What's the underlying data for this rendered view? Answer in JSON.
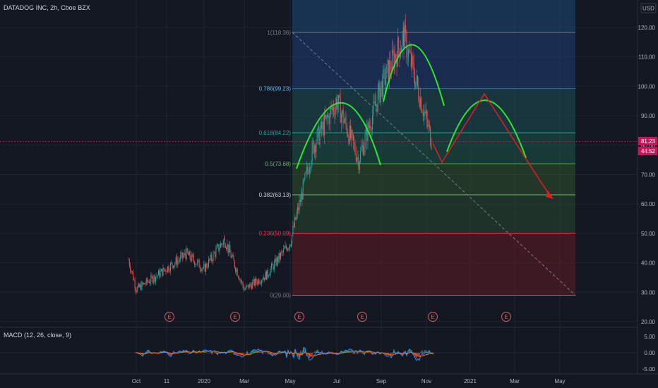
{
  "chart_title": "DATADOG INC, 2h, Cboe BZX",
  "currency": "USD",
  "price_badges": [
    "81.23",
    "44:52"
  ],
  "earnings_marker": "E",
  "macd_title": "MACD (12, 26, close, 9)",
  "colors": {
    "background": "#131722",
    "grid": "#1f2330",
    "up": "#26a69a",
    "down": "#ef5350",
    "arc": "#2ee62e",
    "arrow": "#e81c1c",
    "badge": "#c2185b",
    "macd_line": "#2196f3",
    "signal_line": "#ff6d00",
    "projection_band": "#1e4a7a"
  },
  "chart_data": [
    {
      "type": "candlestick",
      "x_ticks": [
        "Oct",
        "11",
        "2020",
        "Mar",
        "May",
        "Jul",
        "Sep",
        "Nov",
        "2021",
        "Mar",
        "May"
      ],
      "y_ticks": [
        "120.00",
        "110.00",
        "100.00",
        "90.00",
        "80.00",
        "70.00",
        "60.00",
        "50.00",
        "40.00",
        "30.00",
        "20.00"
      ],
      "ylim": [
        20,
        120
      ],
      "price_path": [
        [
          "Sep",
          41
        ],
        [
          "Oct",
          31
        ],
        [
          "Nov",
          35
        ],
        [
          "Dec",
          43
        ],
        [
          "Jan",
          38
        ],
        [
          "Feb",
          48
        ],
        [
          "Mar",
          31
        ],
        [
          "Apr",
          36
        ],
        [
          "May",
          47
        ],
        [
          "Jun",
          80
        ],
        [
          "Jul",
          95
        ],
        [
          "Aug",
          75
        ],
        [
          "Sep",
          100
        ],
        [
          "Oct",
          117
        ],
        [
          "Nov",
          81
        ]
      ],
      "fibonacci": [
        {
          "label": "1(118.36)",
          "level": 1,
          "price": 118.36
        },
        {
          "label": "0.786(99.23)",
          "level": 0.786,
          "price": 99.23
        },
        {
          "label": "0.618(84.22)",
          "level": 0.618,
          "price": 84.22
        },
        {
          "label": "0.5(73.68)",
          "level": 0.5,
          "price": 73.68
        },
        {
          "label": "0.382(63.13)",
          "level": 0.382,
          "price": 63.13
        },
        {
          "label": "0.236(50.09)",
          "level": 0.236,
          "price": 50.09
        },
        {
          "label": "0(29.00)",
          "level": 0,
          "price": 29.0
        }
      ],
      "earnings_dates": [
        "Nov",
        "Feb",
        "May",
        "Aug",
        "Nov",
        "Feb"
      ],
      "annotations": [
        "head-and-shoulders arcs: left shoulder, head, projected right shoulder",
        "projected path: 81.23 -> 74 -> 97 -> 74 -> 63"
      ]
    },
    {
      "type": "line",
      "title": "MACD (12, 26, close, 9)",
      "y_ticks": [
        "5.00",
        "0.00",
        "-5.00"
      ],
      "ylim": [
        -5,
        5
      ]
    }
  ]
}
